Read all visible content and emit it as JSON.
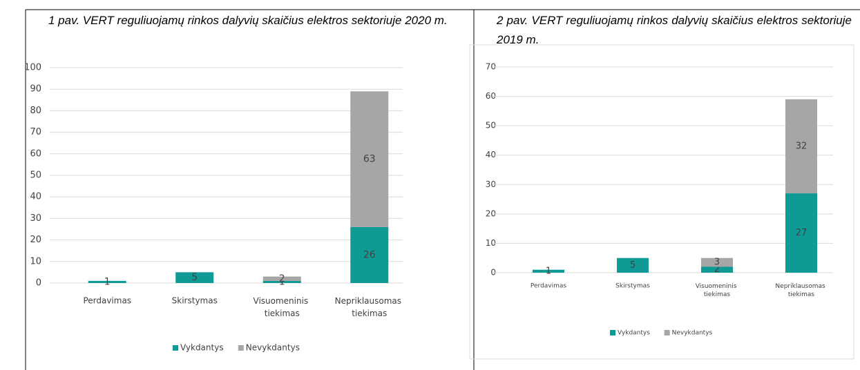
{
  "chart_data": [
    {
      "type": "bar",
      "stacked": true,
      "title": "1 pav. VERT reguliuojamų rinkos dalyvių skaičius elektros sektoriuje 2020 m.",
      "categories": [
        "Perdavimas",
        "Skirstymas",
        "Visuomeninis tiekimas",
        "Nepriklausomas tiekimas"
      ],
      "series": [
        {
          "name": "Vykdantys",
          "color": "#0f9a96",
          "values": [
            1,
            5,
            1,
            26
          ]
        },
        {
          "name": "Nevykdantys",
          "color": "#a6a6a6",
          "values": [
            0,
            0,
            2,
            63
          ]
        }
      ],
      "ylim": [
        0,
        100
      ],
      "yticks": [
        0,
        10,
        20,
        30,
        40,
        50,
        60,
        70,
        80,
        90,
        100
      ],
      "grid": true,
      "legend": "bottom"
    },
    {
      "type": "bar",
      "stacked": true,
      "title": "2 pav. VERT reguliuojamų rinkos dalyvių skaičius elektros sektoriuje 2019 m.",
      "categories": [
        "Perdavimas",
        "Skirstymas",
        "Visuomeninis tiekimas",
        "Nepriklausomas tiekimas"
      ],
      "series": [
        {
          "name": "Vykdantys",
          "color": "#0f9a96",
          "values": [
            1,
            5,
            2,
            27
          ]
        },
        {
          "name": "Nevykdantys",
          "color": "#a6a6a6",
          "values": [
            0,
            0,
            3,
            32
          ]
        }
      ],
      "ylim": [
        0,
        70
      ],
      "yticks": [
        0,
        10,
        20,
        30,
        40,
        50,
        60,
        70
      ],
      "grid": true,
      "legend": "bottom"
    }
  ]
}
